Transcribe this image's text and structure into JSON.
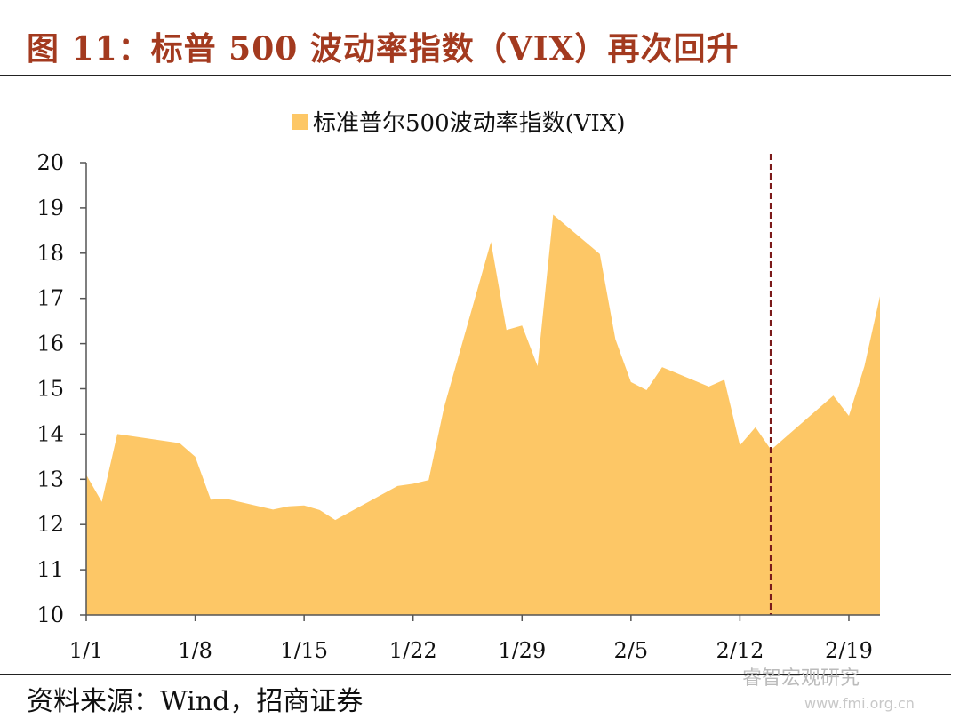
{
  "header": {
    "title": "图 11：标普 500 波动率指数（VIX）再次回升"
  },
  "footer": {
    "source": "资料来源：Wind，招商证券"
  },
  "watermark": {
    "label": "睿智宏观研究",
    "url": "www.fmi.org.cn"
  },
  "colors": {
    "area": "#FDC766",
    "marker_line": "#7B1A1A",
    "axis": "#555555",
    "title": "#A33A1F"
  },
  "chart_data": {
    "type": "area",
    "legend": {
      "label": "标准普尔500波动率指数(VIX)",
      "position": "top-center"
    },
    "ylim": [
      10,
      20
    ],
    "yticks": [
      "10",
      "11",
      "12",
      "13",
      "14",
      "15",
      "16",
      "17",
      "18",
      "19",
      "20"
    ],
    "xlim": [
      1,
      52
    ],
    "xticks": [
      {
        "label": "1/1",
        "day": 1
      },
      {
        "label": "1/8",
        "day": 8
      },
      {
        "label": "1/15",
        "day": 15
      },
      {
        "label": "1/22",
        "day": 22
      },
      {
        "label": "1/29",
        "day": 29
      },
      {
        "label": "2/5",
        "day": 36
      },
      {
        "label": "2/12",
        "day": 43
      },
      {
        "label": "2/19",
        "day": 50
      }
    ],
    "reference_line": {
      "day": 45,
      "style": "dashed"
    },
    "series": [
      {
        "values": [
          {
            "day": 1,
            "y": 13.1
          },
          {
            "day": 2,
            "y": 12.5
          },
          {
            "day": 3,
            "y": 14.0
          },
          {
            "day": 7,
            "y": 13.8
          },
          {
            "day": 8,
            "y": 13.5
          },
          {
            "day": 9,
            "y": 12.55
          },
          {
            "day": 10,
            "y": 12.57
          },
          {
            "day": 13,
            "y": 12.33
          },
          {
            "day": 14,
            "y": 12.4
          },
          {
            "day": 15,
            "y": 12.42
          },
          {
            "day": 16,
            "y": 12.32
          },
          {
            "day": 17,
            "y": 12.1
          },
          {
            "day": 21,
            "y": 12.85
          },
          {
            "day": 22,
            "y": 12.9
          },
          {
            "day": 23,
            "y": 12.98
          },
          {
            "day": 24,
            "y": 14.6
          },
          {
            "day": 27,
            "y": 18.25
          },
          {
            "day": 28,
            "y": 16.3
          },
          {
            "day": 29,
            "y": 16.4
          },
          {
            "day": 30,
            "y": 15.5
          },
          {
            "day": 31,
            "y": 18.85
          },
          {
            "day": 34,
            "y": 17.98
          },
          {
            "day": 35,
            "y": 16.1
          },
          {
            "day": 36,
            "y": 15.15
          },
          {
            "day": 37,
            "y": 14.97
          },
          {
            "day": 38,
            "y": 15.48
          },
          {
            "day": 41,
            "y": 15.05
          },
          {
            "day": 42,
            "y": 15.2
          },
          {
            "day": 43,
            "y": 13.75
          },
          {
            "day": 44,
            "y": 14.15
          },
          {
            "day": 45,
            "y": 13.65
          },
          {
            "day": 49,
            "y": 14.85
          },
          {
            "day": 50,
            "y": 14.4
          },
          {
            "day": 51,
            "y": 15.5
          },
          {
            "day": 52,
            "y": 17.05
          }
        ]
      }
    ]
  }
}
